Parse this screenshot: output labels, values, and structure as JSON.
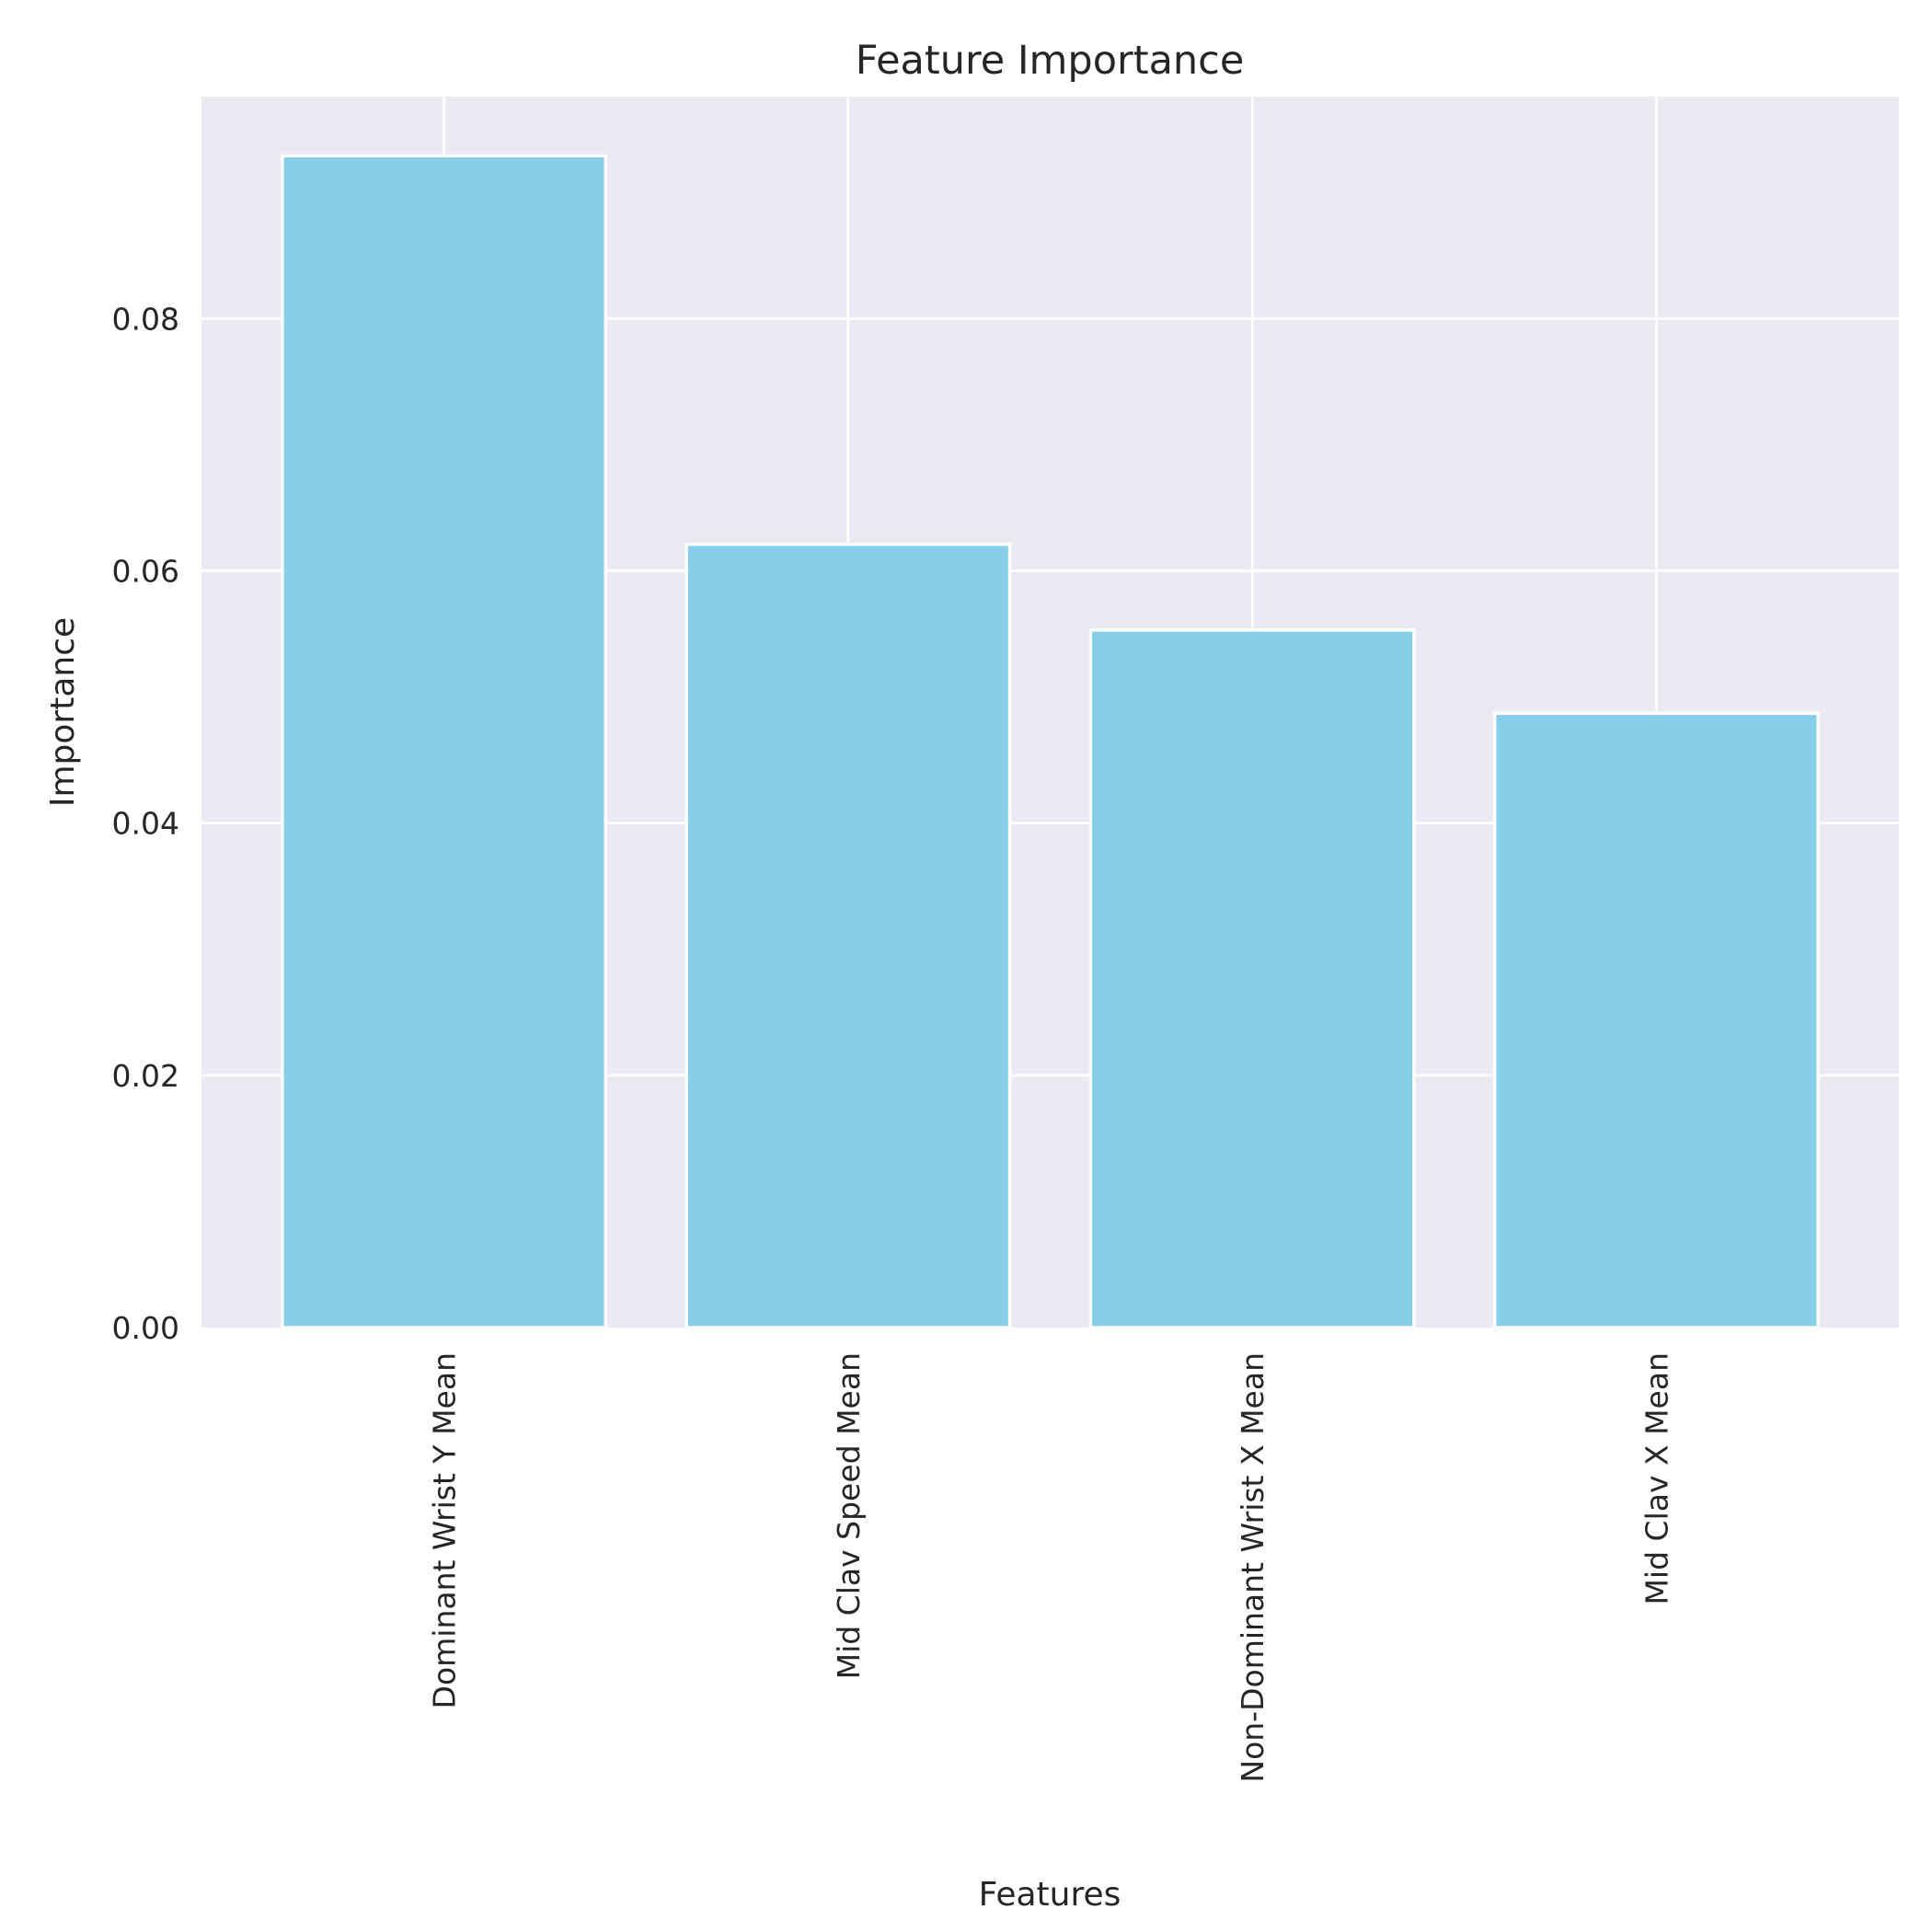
{
  "chart_data": {
    "type": "bar",
    "title": "Feature Importance",
    "xlabel": "Features",
    "ylabel": "Importance",
    "categories": [
      "Dominant Wrist Y Mean",
      "Mid Clav Speed Mean",
      "Non-Dominant Wrist X Mean",
      "Mid Clav X Mean"
    ],
    "values": [
      0.0929,
      0.0621,
      0.0553,
      0.0487
    ],
    "ylim": [
      0,
      0.0976
    ],
    "yticks": [
      0.0,
      0.02,
      0.04,
      0.06,
      0.08
    ],
    "ytick_labels": [
      "0.00",
      "0.02",
      "0.04",
      "0.06",
      "0.08"
    ],
    "grid": true,
    "xtick_rotation": "vertical",
    "colors": {
      "bar": "#87ceeb",
      "bar_edge": "#ffffff",
      "plot_background": "#eaeaf2",
      "grid": "#ffffff",
      "text": "#262626"
    }
  }
}
